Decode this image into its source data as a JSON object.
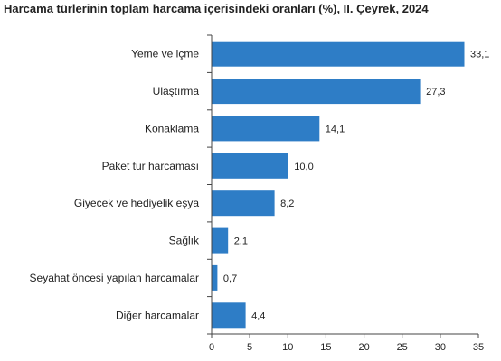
{
  "chart_data": {
    "type": "bar",
    "orientation": "horizontal",
    "title": "Harcama türlerinin toplam harcama içerisindeki oranları (%), II. Çeyrek, 2024",
    "xlabel": "",
    "ylabel": "",
    "categories": [
      "Yeme ve içme",
      "Ulaştırma",
      "Konaklama",
      "Paket tur harcaması",
      "Giyecek ve hediyelik eşya",
      "Sağlık",
      "Seyahat öncesi yapılan harcamalar",
      "Diğer harcamalar"
    ],
    "values": [
      33.1,
      27.3,
      14.1,
      10.0,
      8.2,
      2.1,
      0.7,
      4.4
    ],
    "value_labels": [
      "33,1",
      "27,3",
      "14,1",
      "10,0",
      "8,2",
      "2,1",
      "0,7",
      "4,4"
    ],
    "xlim": [
      0,
      35
    ],
    "xticks": [
      0,
      5,
      10,
      15,
      20,
      25,
      30,
      35
    ],
    "grid": false,
    "legend": "none",
    "bar_color": "#2E7DC6"
  }
}
